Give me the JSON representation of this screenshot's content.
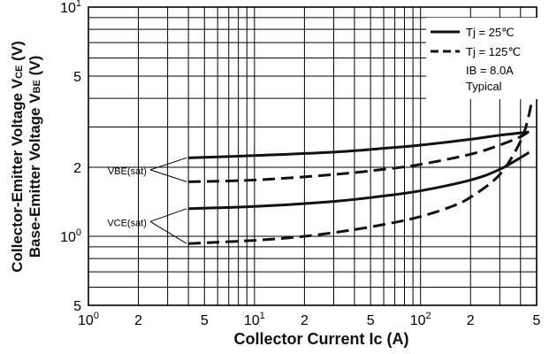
{
  "chart_data": {
    "type": "line",
    "x_scale": "log",
    "y_scale": "log",
    "xlim": [
      1,
      500
    ],
    "ylim": [
      0.5,
      10
    ],
    "xlabel": "Collector Current  Ic (A)",
    "ylabel_lines": [
      "Collector-Emitter Voltage V",
      "Base-Emitter Voltage V"
    ],
    "ylabel_subscripts": [
      "CE",
      "BE"
    ],
    "ylabel_units": [
      "(V)",
      "(V)"
    ],
    "x_ticks": [
      {
        "value": 1,
        "label": "10",
        "sup": "0"
      },
      {
        "value": 2,
        "label": "2",
        "sup": ""
      },
      {
        "value": 5,
        "label": "5",
        "sup": ""
      },
      {
        "value": 10,
        "label": "10",
        "sup": "1"
      },
      {
        "value": 20,
        "label": "2",
        "sup": ""
      },
      {
        "value": 50,
        "label": "5",
        "sup": ""
      },
      {
        "value": 100,
        "label": "10",
        "sup": "2"
      },
      {
        "value": 200,
        "label": "2",
        "sup": ""
      },
      {
        "value": 500,
        "label": "5",
        "sup": ""
      }
    ],
    "y_ticks": [
      {
        "value": 0.5,
        "label": "5",
        "sup": ""
      },
      {
        "value": 1,
        "label": "10",
        "sup": "0"
      },
      {
        "value": 2,
        "label": "2",
        "sup": ""
      },
      {
        "value": 5,
        "label": "5",
        "sup": ""
      },
      {
        "value": 10,
        "label": "10",
        "sup": "1"
      }
    ],
    "legend": {
      "position": "top-right",
      "entries": [
        {
          "label": "Tj = 25℃",
          "style": "solid"
        },
        {
          "label": "Tj = 125℃",
          "style": "dashed"
        }
      ],
      "notes": [
        "IB = 8.0A",
        "Typical"
      ]
    },
    "annotations": [
      {
        "text": "VBE(sat)",
        "targets": [
          "VBE(sat) 25℃",
          "VBE(sat) 125℃"
        ],
        "label_anchor": [
          2.3,
          1.95
        ]
      },
      {
        "text": "VCE(sat)",
        "targets": [
          "VCE(sat) 25℃",
          "VCE(sat) 125℃"
        ],
        "label_anchor": [
          2.3,
          1.16
        ]
      }
    ],
    "series": [
      {
        "name": "VBE(sat) 25℃",
        "style": "solid",
        "x": [
          4,
          10,
          30,
          60,
          100,
          200,
          300,
          450
        ],
        "y": [
          2.2,
          2.25,
          2.33,
          2.42,
          2.5,
          2.65,
          2.76,
          2.85
        ]
      },
      {
        "name": "VBE(sat) 125℃",
        "style": "dashed",
        "x": [
          4,
          10,
          30,
          60,
          100,
          200,
          300,
          400,
          450
        ],
        "y": [
          1.73,
          1.76,
          1.86,
          1.96,
          2.06,
          2.28,
          2.5,
          2.72,
          2.87
        ]
      },
      {
        "name": "VCE(sat) 25℃",
        "style": "solid",
        "x": [
          4,
          10,
          30,
          60,
          100,
          200,
          300,
          450
        ],
        "y": [
          1.32,
          1.35,
          1.42,
          1.5,
          1.58,
          1.76,
          1.96,
          2.32
        ]
      },
      {
        "name": "VCE(sat) 125℃",
        "style": "dashed",
        "x": [
          4,
          10,
          20,
          40,
          70,
          100,
          150,
          200,
          300,
          400,
          450,
          480
        ],
        "y": [
          0.93,
          0.96,
          1.0,
          1.07,
          1.15,
          1.22,
          1.34,
          1.48,
          1.86,
          2.6,
          3.4,
          4.4
        ]
      }
    ]
  }
}
